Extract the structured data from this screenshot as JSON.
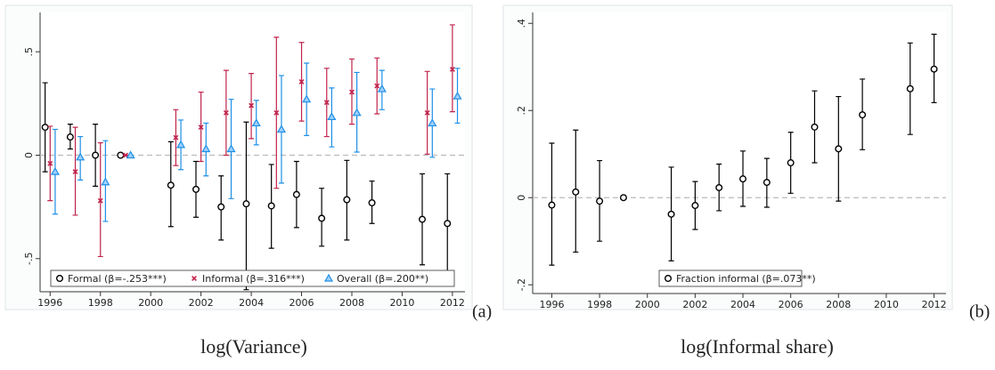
{
  "chart_data": [
    {
      "type": "errorbar",
      "panel_label": "(a)",
      "caption": "log(Variance)",
      "x": [
        1996,
        1997,
        1998,
        1999,
        2001,
        2002,
        2003,
        2004,
        2005,
        2006,
        2007,
        2008,
        2009,
        2011,
        2012
      ],
      "xlim": [
        1995.6,
        2012.5
      ],
      "xticks": [
        1996,
        1998,
        2000,
        2002,
        2004,
        2006,
        2008,
        2010,
        2012
      ],
      "ylim": [
        -0.66,
        0.69
      ],
      "yticks": [
        {
          "value": -0.5,
          "label": "-.5"
        },
        0,
        {
          "value": 0.5,
          "label": ".5"
        }
      ],
      "reference_line": 0,
      "series": [
        {
          "name": "Formal (β=-.253***)",
          "color": "#000000",
          "marker": "circle",
          "values": [
            0.135,
            0.088,
            0.0,
            0.0,
            -0.145,
            -0.165,
            -0.25,
            -0.235,
            -0.245,
            -0.19,
            -0.305,
            -0.215,
            -0.23,
            -0.31,
            -0.33
          ],
          "lower": [
            -0.08,
            0.03,
            -0.15,
            0.0,
            -0.345,
            -0.3,
            -0.41,
            -0.65,
            -0.45,
            -0.35,
            -0.44,
            -0.41,
            -0.33,
            -0.53,
            -0.57
          ],
          "upper": [
            0.35,
            0.15,
            0.15,
            0.0,
            0.065,
            -0.03,
            -0.1,
            0.16,
            -0.045,
            -0.03,
            -0.16,
            -0.025,
            -0.125,
            -0.09,
            -0.09
          ]
        },
        {
          "name": "Informal (β=.316***)",
          "color": "#c0244c",
          "marker": "x",
          "values": [
            -0.04,
            -0.08,
            -0.22,
            0.0,
            0.085,
            0.135,
            0.205,
            0.24,
            0.205,
            0.355,
            0.255,
            0.305,
            0.335,
            0.205,
            0.415
          ],
          "lower": [
            -0.22,
            -0.29,
            -0.49,
            0.0,
            -0.05,
            -0.03,
            0.0,
            0.08,
            -0.16,
            0.165,
            0.09,
            0.15,
            0.2,
            0.005,
            0.21
          ],
          "upper": [
            0.14,
            0.135,
            0.06,
            0.0,
            0.22,
            0.305,
            0.41,
            0.395,
            0.57,
            0.545,
            0.42,
            0.465,
            0.47,
            0.405,
            0.63
          ]
        },
        {
          "name": "Overall (β=.200**)",
          "color": "#1e8fe6",
          "marker": "triangle",
          "values": [
            -0.08,
            -0.01,
            -0.13,
            0.0,
            0.05,
            0.03,
            0.03,
            0.155,
            0.125,
            0.27,
            0.185,
            0.205,
            0.32,
            0.155,
            0.285
          ],
          "lower": [
            -0.285,
            -0.12,
            -0.32,
            0.0,
            -0.07,
            -0.1,
            -0.21,
            0.05,
            -0.135,
            0.095,
            0.04,
            0.015,
            0.22,
            -0.01,
            0.155
          ],
          "upper": [
            0.125,
            0.09,
            0.07,
            0.0,
            0.17,
            0.155,
            0.27,
            0.265,
            0.385,
            0.445,
            0.325,
            0.4,
            0.41,
            0.32,
            0.42
          ]
        }
      ]
    },
    {
      "type": "errorbar",
      "panel_label": "(b)",
      "caption": "log(Informal share)",
      "x": [
        1996,
        1997,
        1998,
        1999,
        2001,
        2002,
        2003,
        2004,
        2005,
        2006,
        2007,
        2008,
        2009,
        2011,
        2012
      ],
      "xlim": [
        1995.2,
        2012.5
      ],
      "xticks": [
        1996,
        1998,
        2000,
        2002,
        2004,
        2006,
        2008,
        2010,
        2012
      ],
      "ylim": [
        -0.22,
        0.425
      ],
      "yticks": [
        {
          "value": -0.2,
          "label": "-.2"
        },
        0,
        {
          "value": 0.2,
          "label": ".2"
        },
        {
          "value": 0.4,
          "label": ".4"
        }
      ],
      "reference_line": 0,
      "series": [
        {
          "name": "Fraction informal (β=.073**)",
          "color": "#000000",
          "marker": "circle",
          "values": [
            -0.017,
            0.013,
            -0.008,
            0.0,
            -0.038,
            -0.018,
            0.023,
            0.043,
            0.035,
            0.08,
            0.162,
            0.112,
            0.19,
            0.25,
            0.295
          ],
          "lower": [
            -0.155,
            -0.125,
            -0.1,
            0.0,
            -0.145,
            -0.073,
            -0.03,
            -0.02,
            -0.022,
            0.01,
            0.08,
            -0.008,
            0.11,
            0.145,
            0.218
          ],
          "upper": [
            0.125,
            0.155,
            0.085,
            0.0,
            0.07,
            0.037,
            0.077,
            0.107,
            0.09,
            0.15,
            0.245,
            0.232,
            0.272,
            0.355,
            0.375
          ]
        }
      ]
    }
  ]
}
